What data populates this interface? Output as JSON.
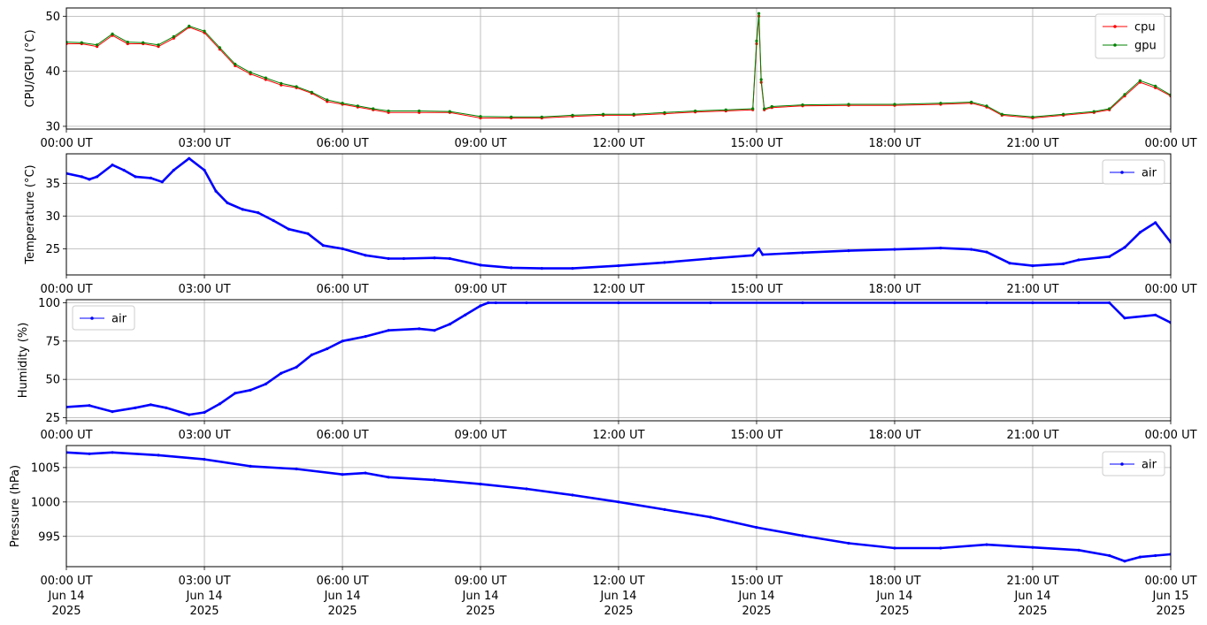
{
  "figure": {
    "x_range": [
      "2025-06-14T00:00",
      "2025-06-15T00:00"
    ],
    "x_ticks": [
      {
        "time": "00:00 UT",
        "date": "Jun 14",
        "year": "2025"
      },
      {
        "time": "03:00 UT",
        "date": "Jun 14",
        "year": "2025"
      },
      {
        "time": "06:00 UT",
        "date": "Jun 14",
        "year": "2025"
      },
      {
        "time": "09:00 UT",
        "date": "Jun 14",
        "year": "2025"
      },
      {
        "time": "12:00 UT",
        "date": "Jun 14",
        "year": "2025"
      },
      {
        "time": "15:00 UT",
        "date": "Jun 14",
        "year": "2025"
      },
      {
        "time": "18:00 UT",
        "date": "Jun 14",
        "year": "2025"
      },
      {
        "time": "21:00 UT",
        "date": "Jun 14",
        "year": "2025"
      },
      {
        "time": "00:00 UT",
        "date": "Jun 15",
        "year": "2025"
      }
    ]
  },
  "chart_data": [
    {
      "type": "line",
      "ylabel": "CPU/GPU (°C)",
      "ylim": [
        29.5,
        51.5
      ],
      "yticks": [
        30,
        40,
        50
      ],
      "grid": true,
      "legend": "top-right",
      "series": [
        {
          "name": "cpu",
          "color": "#ff0000",
          "x": [
            "00:00",
            "00:20",
            "00:40",
            "01:00",
            "01:20",
            "01:40",
            "02:00",
            "02:20",
            "02:40",
            "03:00",
            "03:20",
            "03:40",
            "04:00",
            "04:20",
            "04:40",
            "05:00",
            "05:20",
            "05:40",
            "06:00",
            "06:20",
            "06:40",
            "07:00",
            "07:40",
            "08:20",
            "09:00",
            "09:40",
            "10:20",
            "11:00",
            "11:40",
            "12:20",
            "13:00",
            "13:40",
            "14:20",
            "14:55",
            "15:00",
            "15:03",
            "15:06",
            "15:10",
            "15:20",
            "16:00",
            "17:00",
            "18:00",
            "19:00",
            "19:40",
            "20:00",
            "20:20",
            "21:00",
            "21:40",
            "22:20",
            "22:40",
            "23:00",
            "23:20",
            "23:40",
            "24:00"
          ],
          "y": [
            45,
            45,
            44.5,
            46.5,
            45,
            45,
            44.5,
            46,
            48,
            47,
            44,
            41,
            39.5,
            38.5,
            37.5,
            37,
            36,
            34.5,
            34,
            33.5,
            33,
            32.5,
            32.5,
            32.5,
            31.5,
            31.5,
            31.5,
            31.8,
            32,
            32,
            32.3,
            32.6,
            32.8,
            33,
            45,
            50,
            38,
            33,
            33.4,
            33.7,
            33.8,
            33.8,
            34,
            34.2,
            33.5,
            32,
            31.5,
            32,
            32.5,
            33,
            35.5,
            38,
            37,
            35.5
          ]
        },
        {
          "name": "gpu",
          "color": "#008000",
          "x": [
            "00:00",
            "00:20",
            "00:40",
            "01:00",
            "01:20",
            "01:40",
            "02:00",
            "02:20",
            "02:40",
            "03:00",
            "03:20",
            "03:40",
            "04:00",
            "04:20",
            "04:40",
            "05:00",
            "05:20",
            "05:40",
            "06:00",
            "06:20",
            "06:40",
            "07:00",
            "07:40",
            "08:20",
            "09:00",
            "09:40",
            "10:20",
            "11:00",
            "11:40",
            "12:20",
            "13:00",
            "13:40",
            "14:20",
            "14:55",
            "15:00",
            "15:03",
            "15:06",
            "15:10",
            "15:20",
            "16:00",
            "17:00",
            "18:00",
            "19:00",
            "19:40",
            "20:00",
            "20:20",
            "21:00",
            "21:40",
            "22:20",
            "22:40",
            "23:00",
            "23:20",
            "23:40",
            "24:00"
          ],
          "y": [
            45.3,
            45.2,
            44.8,
            46.8,
            45.3,
            45.2,
            44.8,
            46.3,
            48.2,
            47.3,
            44.3,
            41.3,
            39.8,
            38.8,
            37.8,
            37.2,
            36.2,
            34.8,
            34.2,
            33.7,
            33.2,
            32.8,
            32.8,
            32.7,
            31.8,
            31.7,
            31.7,
            32,
            32.2,
            32.2,
            32.5,
            32.8,
            33,
            33.2,
            45.5,
            50.5,
            38.5,
            33.2,
            33.6,
            33.9,
            34,
            34,
            34.2,
            34.4,
            33.7,
            32.2,
            31.7,
            32.2,
            32.7,
            33.2,
            35.8,
            38.3,
            37.3,
            35.7
          ]
        }
      ]
    },
    {
      "type": "line",
      "ylabel": "Temperature (°C)",
      "ylim": [
        21,
        39.5
      ],
      "yticks": [
        25,
        30,
        35
      ],
      "grid": true,
      "legend": "top-right",
      "series": [
        {
          "name": "air",
          "color": "#0000ff",
          "x": [
            "00:00",
            "00:20",
            "00:30",
            "00:40",
            "01:00",
            "01:15",
            "01:30",
            "01:50",
            "02:05",
            "02:20",
            "02:40",
            "03:00",
            "03:15",
            "03:30",
            "03:50",
            "04:10",
            "04:30",
            "04:50",
            "05:15",
            "05:35",
            "06:00",
            "06:30",
            "07:00",
            "07:20",
            "08:00",
            "08:20",
            "09:00",
            "09:40",
            "10:20",
            "11:00",
            "12:00",
            "13:00",
            "14:00",
            "14:55",
            "15:03",
            "15:08",
            "16:00",
            "17:00",
            "18:00",
            "19:00",
            "19:40",
            "20:00",
            "20:30",
            "21:00",
            "21:40",
            "22:00",
            "22:40",
            "23:00",
            "23:20",
            "23:40",
            "24:00"
          ],
          "y": [
            36.5,
            36,
            35.6,
            36,
            37.8,
            37,
            36,
            35.8,
            35.2,
            37,
            38.8,
            37,
            33.8,
            32,
            31,
            30.5,
            29.3,
            28,
            27.3,
            25.5,
            25,
            24,
            23.5,
            23.5,
            23.6,
            23.5,
            22.5,
            22.1,
            22,
            22,
            22.4,
            22.9,
            23.5,
            24,
            25,
            24.1,
            24.4,
            24.7,
            24.9,
            25.1,
            24.9,
            24.5,
            22.8,
            22.4,
            22.7,
            23.3,
            23.8,
            25.2,
            27.5,
            29,
            26
          ]
        }
      ]
    },
    {
      "type": "line",
      "ylabel": "Humidity (%)",
      "ylim": [
        23,
        102
      ],
      "yticks": [
        25,
        50,
        75,
        100
      ],
      "grid": true,
      "legend": "top-left",
      "series": [
        {
          "name": "air",
          "color": "#0000ff",
          "x": [
            "00:00",
            "00:30",
            "01:00",
            "01:30",
            "01:50",
            "02:10",
            "02:40",
            "03:00",
            "03:20",
            "03:40",
            "04:00",
            "04:20",
            "04:40",
            "05:00",
            "05:20",
            "05:40",
            "06:00",
            "06:30",
            "07:00",
            "07:40",
            "08:00",
            "08:20",
            "08:40",
            "09:00",
            "09:10",
            "09:20",
            "10:00",
            "12:00",
            "14:00",
            "16:00",
            "18:00",
            "20:00",
            "21:00",
            "22:00",
            "22:40",
            "23:00",
            "23:40",
            "24:00"
          ],
          "y": [
            32,
            33,
            29,
            31.5,
            33.5,
            31.5,
            27,
            28.5,
            34,
            41,
            43,
            47,
            54,
            58,
            66,
            70,
            75,
            78,
            82,
            83,
            82,
            86,
            92,
            98,
            100,
            100,
            100,
            100,
            100,
            100,
            100,
            100,
            100,
            100,
            100,
            90,
            92,
            87
          ]
        }
      ]
    },
    {
      "type": "line",
      "ylabel": "Pressure (hPa)",
      "ylim": [
        990.6,
        1008.2
      ],
      "yticks": [
        995,
        1000,
        1005
      ],
      "grid": true,
      "legend": "top-right",
      "series": [
        {
          "name": "air",
          "color": "#0000ff",
          "x": [
            "00:00",
            "00:30",
            "01:00",
            "02:00",
            "03:00",
            "04:00",
            "05:00",
            "06:00",
            "06:30",
            "07:00",
            "08:00",
            "09:00",
            "10:00",
            "11:00",
            "12:00",
            "13:00",
            "14:00",
            "15:00",
            "16:00",
            "17:00",
            "18:00",
            "19:00",
            "20:00",
            "21:00",
            "22:00",
            "22:40",
            "23:00",
            "23:20",
            "23:40",
            "24:00"
          ],
          "y": [
            1007.2,
            1007,
            1007.2,
            1006.8,
            1006.2,
            1005.2,
            1004.8,
            1004,
            1004.2,
            1003.6,
            1003.2,
            1002.6,
            1001.9,
            1001,
            1000,
            998.9,
            997.8,
            996.3,
            995.1,
            994,
            993.3,
            993.3,
            993.8,
            993.4,
            993,
            992.2,
            991.4,
            992,
            992.2,
            992.4
          ]
        }
      ]
    }
  ]
}
